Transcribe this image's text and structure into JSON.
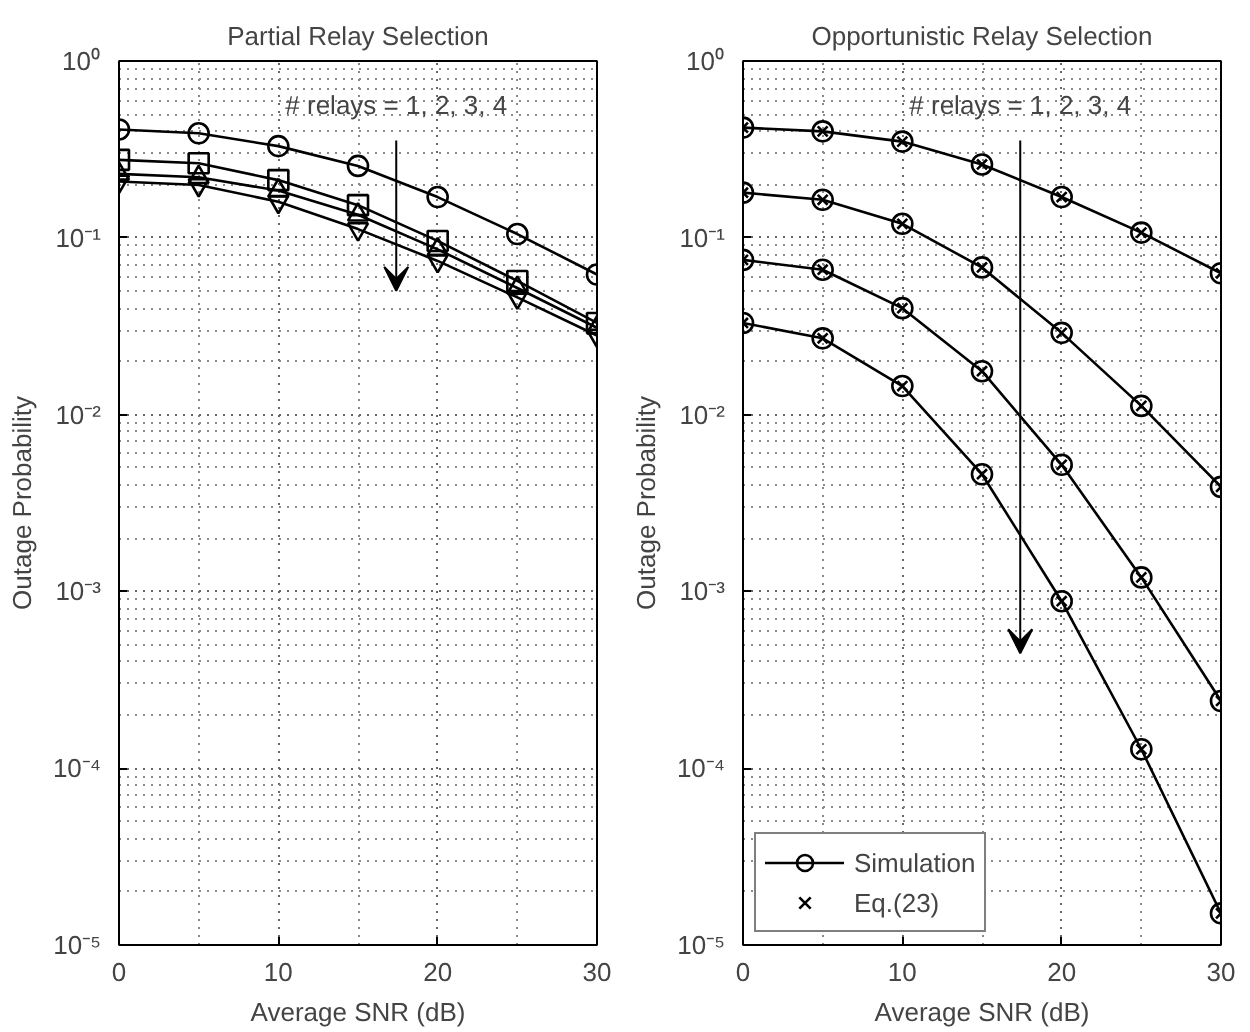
{
  "chart_data": [
    {
      "type": "line",
      "title": "Partial Relay Selection",
      "xlabel": "Average SNR (dB)",
      "ylabel": "Outage Probability",
      "log": "y",
      "grid": true,
      "legend": false,
      "line_style": "solid",
      "x": [
        0,
        5,
        10,
        15,
        20,
        25,
        30
      ],
      "xlim": [
        0,
        30
      ],
      "xticks": [
        0,
        10,
        20,
        30
      ],
      "ylim": [
        1e-05,
        1
      ],
      "yticks": [
        {
          "value": 1e-05,
          "label": "10⁻⁵"
        },
        {
          "value": 0.0001,
          "label": "10⁻⁴"
        },
        {
          "value": 0.001,
          "label": "10⁻³"
        },
        {
          "value": 0.01,
          "label": "10⁻²"
        },
        {
          "value": 0.1,
          "label": "10⁻¹"
        },
        {
          "value": 1,
          "label": "10⁰"
        }
      ],
      "annotations": [
        "# relays = 1, 2, 3, 4"
      ],
      "series": [
        {
          "color": "#000000",
          "marker": "circle",
          "values": [
            0.41,
            0.39,
            0.33,
            0.255,
            0.17,
            0.105,
            0.062
          ]
        },
        {
          "color": "#000000",
          "marker": "square",
          "values": [
            0.276,
            0.264,
            0.212,
            0.153,
            0.096,
            0.057,
            0.033
          ]
        },
        {
          "color": "#000000",
          "marker": "triangle",
          "values": [
            0.23,
            0.22,
            0.185,
            0.135,
            0.086,
            0.052,
            0.031
          ]
        },
        {
          "color": "#000000",
          "marker": "triangle_down",
          "values": [
            0.208,
            0.199,
            0.16,
            0.112,
            0.074,
            0.046,
            0.028
          ]
        }
      ]
    },
    {
      "type": "line",
      "title": "Opportunistic Relay Selection",
      "xlabel": "Average SNR (dB)",
      "ylabel": "Outage Probability",
      "log": "y",
      "grid": true,
      "legend": "bottom left",
      "line_style": "solid",
      "x": [
        0,
        5,
        10,
        15,
        20,
        25,
        30
      ],
      "xlim": [
        0,
        30
      ],
      "xticks": [
        0,
        10,
        20,
        30
      ],
      "ylim": [
        1e-05,
        1
      ],
      "yticks": [
        {
          "value": 1e-05,
          "label": "10⁻⁵"
        },
        {
          "value": 0.0001,
          "label": "10⁻⁴"
        },
        {
          "value": 0.001,
          "label": "10⁻³"
        },
        {
          "value": 0.01,
          "label": "10⁻²"
        },
        {
          "value": 0.1,
          "label": "10⁻¹"
        },
        {
          "value": 1,
          "label": "10⁰"
        }
      ],
      "annotations": [
        "# relays = 1, 2, 3, 4"
      ],
      "series": [
        {
          "name": "Simulation",
          "color": "#000000",
          "marker": "circle",
          "values": [
            0.42,
            0.4,
            0.35,
            0.26,
            0.17,
            0.107,
            0.063
          ]
        },
        {
          "color": "#000000",
          "marker": "circle",
          "values": [
            0.18,
            0.164,
            0.12,
            0.068,
            0.029,
            0.0112,
            0.0039
          ]
        },
        {
          "color": "#000000",
          "marker": "circle",
          "values": [
            0.075,
            0.066,
            0.04,
            0.0176,
            0.0052,
            0.0012,
            0.00024
          ]
        },
        {
          "color": "#000000",
          "marker": "circle",
          "values": [
            0.033,
            0.027,
            0.0145,
            0.0046,
            0.00088,
            0.000128,
            1.51e-05
          ]
        },
        {
          "name": "Eq.(23)",
          "type": "scatter",
          "color": "#000000",
          "marker": "cross",
          "values": [
            0.42,
            0.4,
            0.35,
            0.26,
            0.17,
            0.107,
            0.063
          ]
        },
        {
          "type": "scatter",
          "color": "#000000",
          "marker": "cross",
          "values": [
            0.18,
            0.164,
            0.12,
            0.068,
            0.029,
            0.0112,
            0.0039
          ]
        },
        {
          "type": "scatter",
          "color": "#000000",
          "marker": "cross",
          "values": [
            0.075,
            0.066,
            0.04,
            0.0176,
            0.0052,
            0.0012,
            0.00024
          ]
        },
        {
          "type": "scatter",
          "color": "#000000",
          "marker": "cross",
          "values": [
            0.033,
            0.027,
            0.0145,
            0.0046,
            0.00088,
            0.000128,
            1.51e-05
          ]
        }
      ]
    }
  ]
}
